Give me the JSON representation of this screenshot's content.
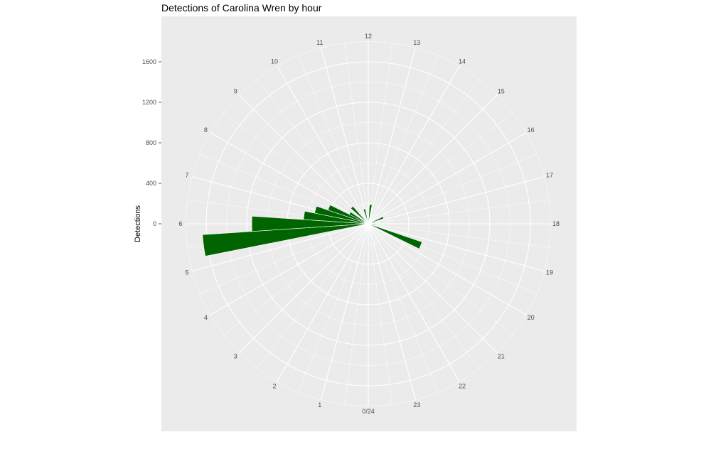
{
  "chart_data": {
    "type": "bar",
    "polar": true,
    "title": "Detections of Carolina Wren by hour",
    "ylabel": "Detections",
    "xlabel": "",
    "y_ticks": [
      "0",
      "400",
      "800",
      "1200",
      "1600"
    ],
    "ylim": [
      0,
      1800
    ],
    "hour_labels": [
      "0/24",
      "1",
      "2",
      "3",
      "4",
      "5",
      "6",
      "7",
      "8",
      "9",
      "10",
      "11",
      "12",
      "13",
      "14",
      "15",
      "16",
      "17",
      "18",
      "19",
      "20",
      "21",
      "22",
      "23"
    ],
    "bars": [
      {
        "hour": 5.5,
        "value": 1640
      },
      {
        "hour": 6.0,
        "value": 1150
      },
      {
        "hour": 6.5,
        "value": 640
      },
      {
        "hour": 7.0,
        "value": 540
      },
      {
        "hour": 7.5,
        "value": 420
      },
      {
        "hour": 8.0,
        "value": 210
      },
      {
        "hour": 9.0,
        "value": 230
      },
      {
        "hour": 11.0,
        "value": 150
      },
      {
        "hour": 12.5,
        "value": 190
      },
      {
        "hour": 16.5,
        "value": 160
      },
      {
        "hour": 17.0,
        "value": 70
      },
      {
        "hour": 18.5,
        "value": 70
      },
      {
        "hour": 19.5,
        "value": 560
      }
    ],
    "bar_width_hours": 0.5,
    "bar_color": "#006400",
    "panel_color": "#ebebeb",
    "grid_color": "#ffffff",
    "grid": true
  }
}
